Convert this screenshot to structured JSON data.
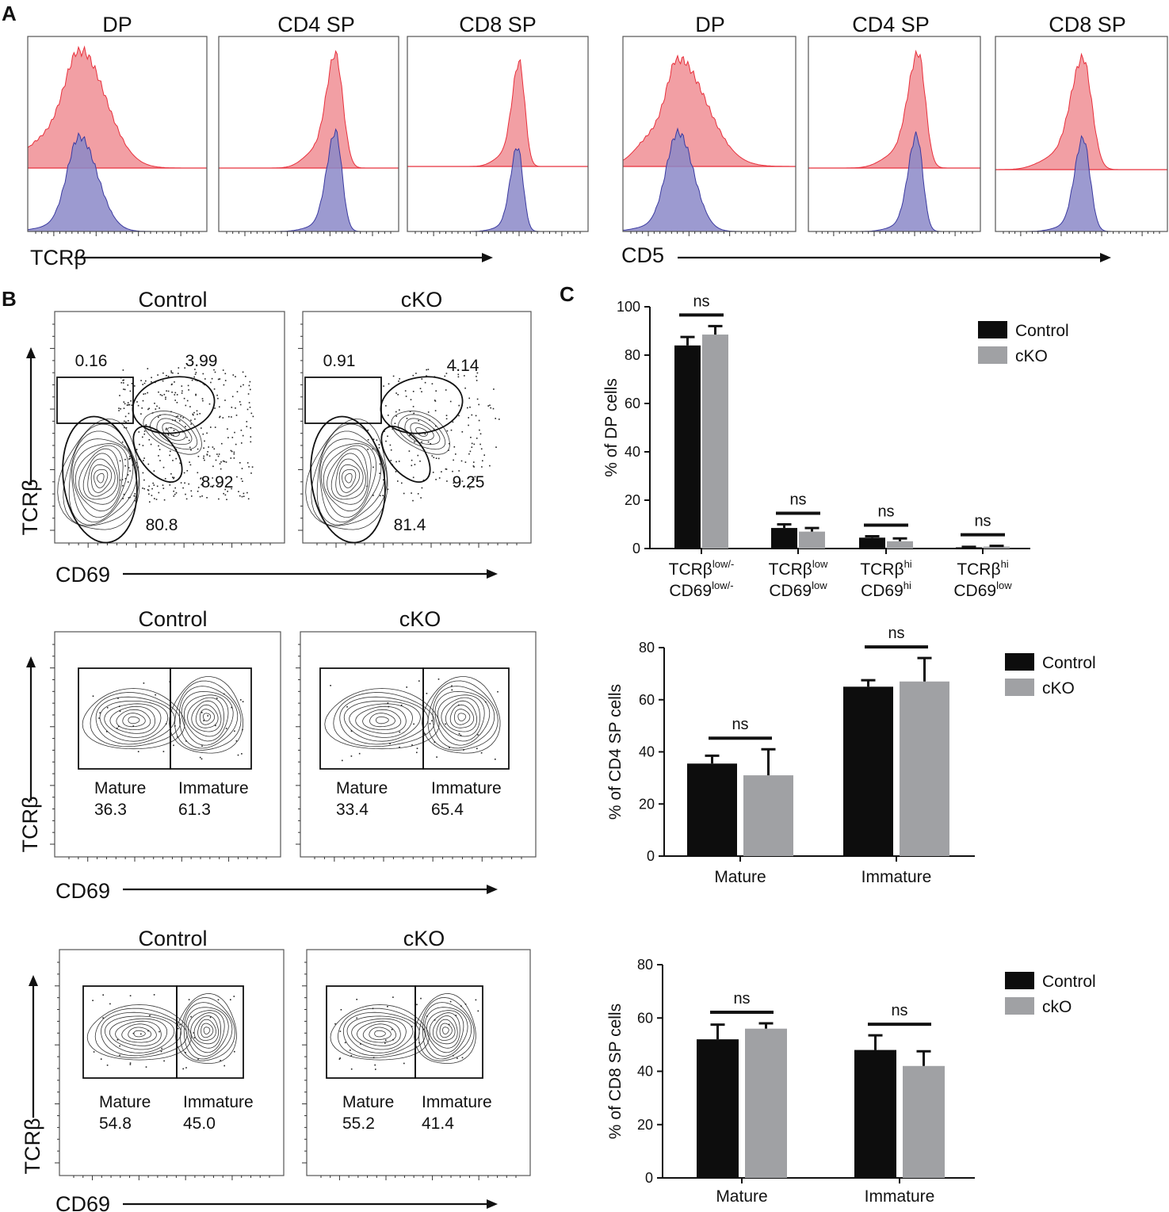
{
  "panel_a": {
    "letter": "A",
    "x_labels": [
      "TCRβ",
      "CD5"
    ],
    "histograms": [
      {
        "marker": "TCRβ",
        "title": "DP"
      },
      {
        "marker": "TCRβ",
        "title": "CD4 SP"
      },
      {
        "marker": "TCRβ",
        "title": "CD8 SP"
      },
      {
        "marker": "CD5",
        "title": "DP"
      },
      {
        "marker": "CD5",
        "title": "CD4 SP"
      },
      {
        "marker": "CD5",
        "title": "CD8 SP"
      }
    ],
    "colors": {
      "control": "#f08e94",
      "cko": "#8b88c8",
      "control_line": "#e8303c",
      "cko_line": "#3b3aa0"
    }
  },
  "panel_b": {
    "letter": "B",
    "y_label": "TCRβ",
    "x_label": "CD69",
    "rows": [
      {
        "plots": [
          {
            "title": "Control",
            "gates": [
              "0.16",
              "3.99",
              "8.92",
              "80.8"
            ]
          },
          {
            "title": "cKO",
            "gates": [
              "0.91",
              "4.14",
              "9.25",
              "81.4"
            ]
          }
        ]
      },
      {
        "plots": [
          {
            "title": "Control",
            "gate_labels": [
              "Mature",
              "Immature"
            ],
            "gates": [
              "36.3",
              "61.3"
            ]
          },
          {
            "title": "cKO",
            "gate_labels": [
              "Mature",
              "Immature"
            ],
            "gates": [
              "33.4",
              "65.4"
            ]
          }
        ]
      },
      {
        "plots": [
          {
            "title": "Control",
            "gate_labels": [
              "Mature",
              "Immature"
            ],
            "gates": [
              "54.8",
              "45.0"
            ]
          },
          {
            "title": "cKO",
            "gate_labels": [
              "Mature",
              "Immature"
            ],
            "gates": [
              "55.2",
              "41.4"
            ]
          }
        ]
      }
    ]
  },
  "panel_c": {
    "letter": "C"
  },
  "chart_data": [
    {
      "type": "bar",
      "ylabel": "% of DP cells",
      "ylim": [
        0,
        100
      ],
      "yticks": [
        0,
        20,
        40,
        60,
        80,
        100
      ],
      "category_lines": [
        [
          {
            "t": "TCRβ",
            "sup": "low/-"
          },
          {
            "t": "CD69",
            "sup": "low/-"
          }
        ],
        [
          {
            "t": "TCRβ",
            "sup": "low"
          },
          {
            "t": "CD69",
            "sup": "low"
          }
        ],
        [
          {
            "t": "TCRβ",
            "sup": "hi"
          },
          {
            "t": "CD69",
            "sup": "hi"
          }
        ],
        [
          {
            "t": "TCRβ",
            "sup": "hi"
          },
          {
            "t": "CD69",
            "sup": "low"
          }
        ]
      ],
      "series": [
        {
          "name": "Control",
          "color": "#0d0d0d",
          "values": [
            84,
            8.5,
            4.5,
            0.5
          ],
          "errors": [
            3.5,
            1.5,
            0.6,
            0.2
          ]
        },
        {
          "name": "cKO",
          "color": "#a0a1a4",
          "values": [
            88.5,
            7,
            3,
            0.8
          ],
          "errors": [
            3.5,
            1.5,
            1.2,
            0.3
          ]
        }
      ],
      "significance": [
        "ns",
        "ns",
        "ns",
        "ns"
      ],
      "legend": "top-right"
    },
    {
      "type": "bar",
      "ylabel": "% of CD4 SP cells",
      "ylim": [
        0,
        80
      ],
      "yticks": [
        0,
        20,
        40,
        60,
        80
      ],
      "category_lines": [
        [
          {
            "t": "Mature",
            "sup": ""
          }
        ],
        [
          {
            "t": "Immature",
            "sup": ""
          }
        ]
      ],
      "series": [
        {
          "name": "Control",
          "color": "#0d0d0d",
          "values": [
            35.5,
            65
          ],
          "errors": [
            3,
            2.5
          ]
        },
        {
          "name": "cKO",
          "color": "#a0a1a4",
          "values": [
            31,
            67
          ],
          "errors": [
            10,
            9
          ]
        }
      ],
      "significance": [
        "ns",
        "ns"
      ],
      "legend": "top-right"
    },
    {
      "type": "bar",
      "ylabel": "% of CD8 SP cells",
      "ylim": [
        0,
        80
      ],
      "yticks": [
        0,
        20,
        40,
        60,
        80
      ],
      "category_lines": [
        [
          {
            "t": "Mature",
            "sup": ""
          }
        ],
        [
          {
            "t": "Immature",
            "sup": ""
          }
        ]
      ],
      "series": [
        {
          "name": "Control",
          "color": "#0d0d0d",
          "values": [
            52,
            48
          ],
          "errors": [
            5.5,
            5.5
          ]
        },
        {
          "name": "ckO",
          "color": "#a0a1a4",
          "values": [
            56,
            42
          ],
          "errors": [
            2,
            5.5
          ]
        }
      ],
      "significance": [
        "ns",
        "ns"
      ],
      "legend": "top-right"
    }
  ]
}
